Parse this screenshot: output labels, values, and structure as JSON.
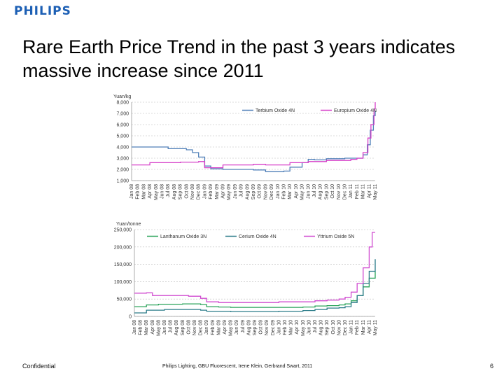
{
  "header": {
    "logo_text": "PHILIPS"
  },
  "slide": {
    "title": "Rare Earth Price Trend in the past 3 years indicates massive increase since 2011"
  },
  "footer": {
    "left": "Confidential",
    "center": "Philips Lighting, GBU Fluorescent, Irene Klein, Gerbrand Swart, 2011",
    "page": "6"
  },
  "colors": {
    "brand": "#1c5fb4",
    "terbium": "#4f7fb8",
    "europium": "#d63fc8",
    "lanthanum": "#2aa35a",
    "cerium": "#2a7b88",
    "yttrium": "#d04bd0"
  },
  "chart_data": [
    {
      "type": "line",
      "ylabel": "Yuan/kg",
      "ylim": [
        1000,
        8000
      ],
      "yticks": [
        "1,000",
        "2,000",
        "3,000",
        "4,000",
        "5,000",
        "6,000",
        "7,000",
        "8,000"
      ],
      "grid": true,
      "legend": "top-right",
      "x_ticks": [
        "Jan 08",
        "Feb 08",
        "Mar 08",
        "Apr 08",
        "May 08",
        "Jun 08",
        "Jul 08",
        "Aug 08",
        "Sep 08",
        "Oct 08",
        "Nov 08",
        "Dec 08",
        "Jan 09",
        "Feb 09",
        "Mar 09",
        "Apr 09",
        "May 09",
        "Jun 09",
        "Jul 09",
        "Aug 09",
        "Sep 09",
        "Oct 09",
        "Nov 09",
        "Dec 09",
        "Jan 10",
        "Feb 10",
        "Mar 10",
        "Apr 10",
        "May 10",
        "Jun 10",
        "Jul 10",
        "Aug 10",
        "Sep 10",
        "Oct 10",
        "Nov 10",
        "Dec 10",
        "Jan 11",
        "Feb 11",
        "Mar 11",
        "Apr 11",
        "May 11"
      ],
      "series": [
        {
          "name": "Terbium Oxide 4N",
          "color": "#4f7fb8",
          "points": [
            [
              0,
              4000
            ],
            [
              5,
              4000
            ],
            [
              6,
              3850
            ],
            [
              9,
              3750
            ],
            [
              10,
              3500
            ],
            [
              11,
              3100
            ],
            [
              12,
              2300
            ],
            [
              13,
              2050
            ],
            [
              15,
              2000
            ],
            [
              20,
              1950
            ],
            [
              22,
              1800
            ],
            [
              25,
              1850
            ],
            [
              26,
              2200
            ],
            [
              28,
              2600
            ],
            [
              29,
              2900
            ],
            [
              30,
              2850
            ],
            [
              32,
              2950
            ],
            [
              35,
              3000
            ],
            [
              37,
              3000
            ],
            [
              38,
              3300
            ],
            [
              38.7,
              4200
            ],
            [
              39.2,
              5500
            ],
            [
              39.7,
              6800
            ],
            [
              40,
              7200
            ]
          ]
        },
        {
          "name": "Europium Oxide 4N",
          "color": "#d63fc8",
          "points": [
            [
              0,
              2400
            ],
            [
              2,
              2400
            ],
            [
              3,
              2600
            ],
            [
              8,
              2650
            ],
            [
              11,
              2700
            ],
            [
              12,
              2150
            ],
            [
              14,
              2150
            ],
            [
              15,
              2400
            ],
            [
              20,
              2450
            ],
            [
              22,
              2400
            ],
            [
              25,
              2400
            ],
            [
              26,
              2600
            ],
            [
              29,
              2700
            ],
            [
              32,
              2800
            ],
            [
              36,
              2900
            ],
            [
              37,
              3000
            ],
            [
              38,
              3500
            ],
            [
              38.8,
              4800
            ],
            [
              39.3,
              6000
            ],
            [
              39.8,
              7400
            ],
            [
              40,
              8000
            ]
          ]
        }
      ]
    },
    {
      "type": "line",
      "ylabel": "Yuan/tonne",
      "ylim": [
        0,
        250000
      ],
      "yticks": [
        "0",
        "50,000",
        "100,000",
        "150,000",
        "200,000",
        "250,000"
      ],
      "grid": true,
      "legend": "top",
      "x_ticks": [
        "Jan 08",
        "Feb 08",
        "Mar 08",
        "Apr 08",
        "May 08",
        "Jun 08",
        "Jul 08",
        "Aug 08",
        "Sep 08",
        "Oct 08",
        "Nov 08",
        "Dec 08",
        "Jan 09",
        "Feb 09",
        "Mar 09",
        "Apr 09",
        "May 09",
        "Jun 09",
        "Jul 09",
        "Aug 09",
        "Sep 09",
        "Oct 09",
        "Nov 09",
        "Dec 09",
        "Jan 10",
        "Feb 10",
        "Mar 10",
        "Apr 10",
        "May 10",
        "Jun 10",
        "Jul 10",
        "Aug 10",
        "Sep 10",
        "Oct 10",
        "Nov 10",
        "Dec 10",
        "Jan 11",
        "Feb 11",
        "Mar 11",
        "Apr 11",
        "May 11"
      ],
      "series": [
        {
          "name": "Lanthanum Oxide 3N",
          "color": "#2aa35a",
          "points": [
            [
              0,
              28000
            ],
            [
              2,
              33000
            ],
            [
              4,
              35000
            ],
            [
              8,
              36000
            ],
            [
              11,
              34000
            ],
            [
              12,
              28000
            ],
            [
              14,
              27000
            ],
            [
              16,
              26000
            ],
            [
              24,
              26000
            ],
            [
              28,
              27000
            ],
            [
              30,
              30000
            ],
            [
              32,
              31000
            ],
            [
              34,
              33000
            ],
            [
              35,
              36000
            ],
            [
              36,
              45000
            ],
            [
              37,
              60000
            ],
            [
              38,
              85000
            ],
            [
              39,
              110000
            ],
            [
              40,
              130000
            ]
          ]
        },
        {
          "name": "Cerium Oxide 4N",
          "color": "#2a7b88",
          "points": [
            [
              0,
              10000
            ],
            [
              2,
              18000
            ],
            [
              5,
              20000
            ],
            [
              8,
              20000
            ],
            [
              11,
              18000
            ],
            [
              12,
              15000
            ],
            [
              16,
              14000
            ],
            [
              24,
              15000
            ],
            [
              28,
              17000
            ],
            [
              30,
              20000
            ],
            [
              32,
              24000
            ],
            [
              34,
              25000
            ],
            [
              35,
              28000
            ],
            [
              36,
              40000
            ],
            [
              37,
              60000
            ],
            [
              38,
              95000
            ],
            [
              39,
              130000
            ],
            [
              40,
              165000
            ]
          ]
        },
        {
          "name": "Yttrium Oxide 5N",
          "color": "#d04bd0",
          "points": [
            [
              0,
              67000
            ],
            [
              2,
              68000
            ],
            [
              3,
              60000
            ],
            [
              6,
              60000
            ],
            [
              9,
              58000
            ],
            [
              11,
              52000
            ],
            [
              12,
              42000
            ],
            [
              14,
              40000
            ],
            [
              16,
              40000
            ],
            [
              24,
              42000
            ],
            [
              28,
              42000
            ],
            [
              30,
              45000
            ],
            [
              32,
              47000
            ],
            [
              34,
              50000
            ],
            [
              35,
              55000
            ],
            [
              36,
              70000
            ],
            [
              37,
              95000
            ],
            [
              38,
              140000
            ],
            [
              39,
              200000
            ],
            [
              39.5,
              242000
            ],
            [
              40,
              242000
            ]
          ]
        }
      ]
    }
  ]
}
